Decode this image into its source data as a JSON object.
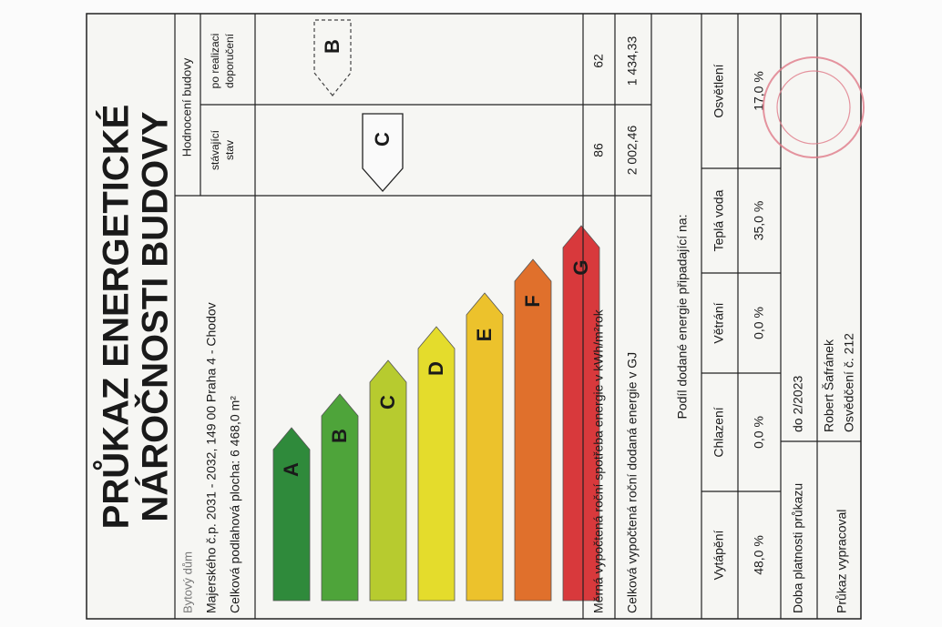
{
  "title": [
    "PRŮKAZ ENERGETICKÉ",
    "NÁROČNOSTI BUDOVY"
  ],
  "building": {
    "type": "Bytový dům",
    "address": "Majerského č.p. 2031 - 2032, 149 00 Praha 4 - Chodov",
    "area": "Celková podlahová plocha: 6 468,0 m²"
  },
  "rating": {
    "header": "Hodnocení budovy",
    "columns": [
      [
        "stávající",
        "stav"
      ],
      [
        "po realizaci",
        "doporučení"
      ]
    ],
    "classes": [
      "A",
      "B",
      "C",
      "D",
      "E",
      "F",
      "G"
    ],
    "current_class": "C",
    "recommended_class": "B"
  },
  "rows": [
    {
      "label": "Měrná vypočtená roční spotřeba energie v kWh/m²rok",
      "current": "86",
      "recommended": "62"
    },
    {
      "label": "Celková vypočtená roční dodaná energie v GJ",
      "current": "2 002,46",
      "recommended": "1 434,33"
    }
  ],
  "share": {
    "title": "Podíl dodané energie připadající na:",
    "headers": [
      "Vytápění",
      "Chlazení",
      "Větrání",
      "Teplá voda",
      "Osvětlení"
    ],
    "values": [
      "48,0 %",
      "0,0 %",
      "0,0 %",
      "35,0 %",
      "17,0 %"
    ]
  },
  "validity": {
    "label": "Doba platnosti průkazu",
    "value": "do 2/2023"
  },
  "author": {
    "label": "Průkaz vypracoval",
    "name": "Robert Šafránek",
    "certificate": "Osvědčení č. 212"
  }
}
